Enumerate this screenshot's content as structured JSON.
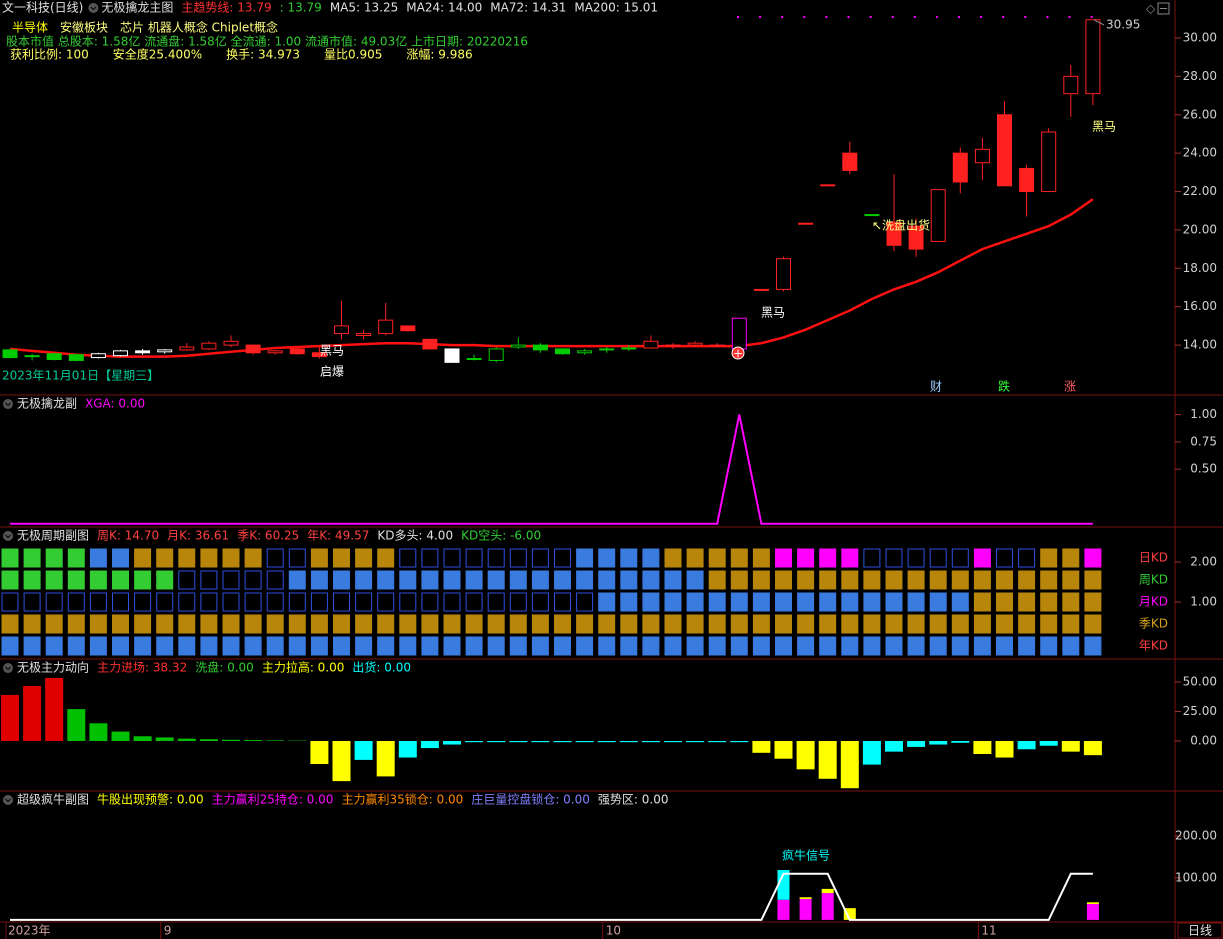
{
  "header": {
    "stock": "文一科技(日线)",
    "industry": "半导体",
    "region": "安徽板块",
    "concepts": "芯片 机器人概念 Chiplet概念",
    "capital_line": "股本市值 总股本: 1.58亿 流通盘: 1.58亿 全流通: 1.00 流通市值: 49.03亿 上市日期: 20220216",
    "stats": [
      "获利比例: 100",
      "安全度25.400%",
      "换手: 34.973",
      "量比0.905",
      "涨幅: 9.986"
    ]
  },
  "chart_data": [
    {
      "type": "candlestick",
      "title": "无极擒龙主图",
      "indicators": [
        "主趋势线: 13.79",
        ": 13.79",
        "MA5: 13.25",
        "MA24: 14.00",
        "MA72: 14.31",
        "MA200: 15.01"
      ],
      "indicator_colors": [
        "#ff3030",
        "#33cc33",
        "#e0e0e0",
        "#e0e0e0",
        "#e0e0e0",
        "#e0e0e0"
      ],
      "open": [
        13.75,
        13.45,
        13.55,
        13.5,
        13.35,
        13.45,
        13.7,
        13.65,
        13.75,
        13.8,
        14.0,
        14.0,
        13.6,
        13.8,
        13.6,
        14.6,
        14.5,
        14.6,
        15.0,
        14.3,
        13.8,
        13.3,
        13.2,
        13.9,
        14.0,
        13.8,
        13.6,
        13.75,
        13.8,
        13.85,
        14.0,
        14.0,
        14.0,
        13.8,
        16.9,
        16.9,
        20.35,
        22.35,
        24.0,
        20.8,
        20.4,
        20.2,
        19.4,
        24.0,
        23.5,
        26.0,
        23.2,
        22.0,
        27.1,
        27.1
      ],
      "high": [
        13.8,
        13.55,
        13.6,
        13.55,
        13.6,
        13.75,
        13.8,
        13.8,
        14.1,
        14.2,
        14.5,
        14.0,
        13.75,
        13.85,
        13.9,
        16.3,
        14.8,
        16.2,
        15.0,
        14.3,
        13.8,
        13.5,
        13.9,
        14.4,
        14.1,
        13.8,
        13.8,
        13.9,
        14.0,
        14.5,
        14.1,
        14.2,
        14.1,
        15.4,
        16.9,
        18.6,
        20.35,
        22.35,
        24.6,
        20.8,
        22.9,
        20.6,
        22.1,
        24.3,
        24.8,
        26.7,
        23.4,
        25.3,
        28.6,
        30.95
      ],
      "low": [
        13.3,
        13.2,
        13.2,
        13.15,
        13.3,
        13.4,
        13.5,
        13.55,
        13.7,
        13.75,
        13.9,
        13.5,
        13.5,
        13.5,
        13.3,
        14.3,
        14.3,
        14.5,
        14.7,
        13.8,
        13.1,
        13.2,
        13.1,
        13.8,
        13.6,
        13.5,
        13.5,
        13.6,
        13.7,
        13.8,
        13.8,
        13.9,
        13.9,
        13.8,
        16.9,
        16.8,
        20.35,
        22.35,
        22.9,
        20.8,
        18.9,
        18.6,
        19.4,
        21.9,
        22.6,
        22.3,
        20.7,
        22.0,
        25.9,
        26.5
      ],
      "close": [
        13.35,
        13.4,
        13.25,
        13.2,
        13.55,
        13.7,
        13.6,
        13.75,
        13.9,
        14.1,
        14.2,
        13.6,
        13.7,
        13.55,
        13.4,
        15.0,
        14.6,
        15.3,
        14.75,
        13.8,
        13.1,
        13.3,
        13.8,
        14.0,
        13.75,
        13.55,
        13.7,
        13.8,
        13.85,
        14.2,
        13.95,
        14.1,
        14.0,
        15.4,
        16.9,
        18.5,
        20.35,
        22.35,
        23.1,
        20.8,
        19.2,
        19.0,
        22.1,
        22.5,
        24.2,
        22.3,
        22.0,
        25.1,
        28.0,
        30.95
      ],
      "colors": [
        "#00cc00",
        "#00cc00",
        "#00cc00",
        "#00cc00",
        "#ffffff",
        "#ffffff",
        "#ffffff",
        "#ffffff",
        "#ff2020",
        "#ff2020",
        "#ff2020",
        "#ff2020",
        "#ff2020",
        "#ff2020",
        "#ff2020",
        "#ff2020",
        "#ff2020",
        "#ff2020",
        "#ff2020",
        "#ff2020",
        "#ffffff",
        "#00cc00",
        "#00cc00",
        "#00cc00",
        "#00cc00",
        "#00cc00",
        "#00cc00",
        "#00cc00",
        "#00cc00",
        "#ff2020",
        "#ff2020",
        "#ff2020",
        "#ff2020",
        "#ff00ff",
        "#ff2020",
        "#ff2020",
        "#ff2020",
        "#ff2020",
        "#ff2020",
        "#00cc00",
        "#ff2020",
        "#ff2020",
        "#ff2020",
        "#ff2020",
        "#ff2020",
        "#ff2020",
        "#ff2020",
        "#ff2020",
        "#ff2020",
        "#ff2020"
      ],
      "line": {
        "color": "#ff1010",
        "values": [
          13.8,
          13.7,
          13.6,
          13.5,
          13.45,
          13.4,
          13.4,
          13.4,
          13.45,
          13.55,
          13.65,
          13.75,
          13.85,
          13.9,
          13.95,
          14.0,
          14.05,
          14.1,
          14.1,
          14.05,
          14.0,
          14.0,
          13.95,
          13.95,
          13.95,
          13.95,
          13.95,
          13.95,
          13.95,
          13.95,
          13.95,
          13.95,
          13.95,
          13.95,
          14.1,
          14.4,
          14.8,
          15.3,
          15.8,
          16.4,
          16.9,
          17.3,
          17.8,
          18.4,
          19.0,
          19.4,
          19.8,
          20.2,
          20.8,
          21.6
        ]
      },
      "annotations": [
        "黑马",
        "启爆",
        "黑马",
        "↖洗盘出货",
        "黑马"
      ],
      "high_label": "30.95",
      "date_label": "2023年11月01日【星期三】",
      "markers": [
        "财",
        "跌",
        "涨"
      ],
      "ylim": [
        11.4,
        31.25
      ],
      "yticks": [
        {
          "value": 30,
          "label": "30.00"
        },
        {
          "value": 28,
          "label": "28.00"
        },
        {
          "value": 26,
          "label": "26.00"
        },
        {
          "value": 24,
          "label": "24.00"
        },
        {
          "value": 22,
          "label": "22.00"
        },
        {
          "value": 20,
          "label": "20.00"
        },
        {
          "value": 18,
          "label": "18.00"
        },
        {
          "value": 16,
          "label": "16.00"
        },
        {
          "value": 14,
          "label": "14.00"
        }
      ]
    },
    {
      "type": "line",
      "title": "无极擒龙副",
      "indicators": [
        "XGA: 0.00"
      ],
      "indicator_colors": [
        "#ff00ff"
      ],
      "color": "#ff00ff",
      "values": [
        0,
        0,
        0,
        0,
        0,
        0,
        0,
        0,
        0,
        0,
        0,
        0,
        0,
        0,
        0,
        0,
        0,
        0,
        0,
        0,
        0,
        0,
        0,
        0,
        0,
        0,
        0,
        0,
        0,
        0,
        0,
        0,
        0,
        1,
        0,
        0,
        0,
        0,
        0,
        0,
        0,
        0,
        0,
        0,
        0,
        0,
        0,
        0,
        0,
        0
      ],
      "ylim": [
        -0.02,
        1.17
      ],
      "yticks": [
        {
          "value": 1,
          "label": "1.00"
        },
        {
          "value": 0.75,
          "label": "0.75"
        },
        {
          "value": 0.5,
          "label": "0.50"
        }
      ]
    },
    {
      "type": "cells",
      "title": "无极周期副图",
      "indicators": [
        "周K: 14.70",
        "月K: 36.61",
        "季K: 60.25",
        "年K: 49.57",
        "KD多头: 4.00",
        "KD空头: -6.00"
      ],
      "indicator_colors": [
        "#ff4040",
        "#ff4040",
        "#ff4040",
        "#ff4040",
        "#e0e0e0",
        "#33cc33"
      ],
      "row_labels": [
        "日KD",
        "周KD",
        "月KD",
        "季KD",
        "年KD"
      ],
      "row_label_colors": [
        "#ff4040",
        "#33cc33",
        "#ff00ff",
        "#d4a017",
        "#ff4040"
      ],
      "palette": {
        "G": "#33cc33",
        "B": "#3a7be0",
        "O": "#b8860b",
        "M": "#ff00ff",
        "E": "#3050e0"
      },
      "outline_codes": [
        "E"
      ],
      "rows": [
        [
          "G",
          "G",
          "G",
          "G",
          "B",
          "B",
          "O",
          "O",
          "O",
          "O",
          "O",
          "O",
          "E",
          "E",
          "O",
          "O",
          "O",
          "O",
          "E",
          "E",
          "E",
          "E",
          "E",
          "E",
          "E",
          "E",
          "B",
          "B",
          "B",
          "B",
          "O",
          "O",
          "O",
          "O",
          "O",
          "M",
          "M",
          "M",
          "M",
          "E",
          "E",
          "E",
          "E",
          "E",
          "M",
          "E",
          "E",
          "O",
          "O",
          "M"
        ],
        [
          "G",
          "G",
          "G",
          "G",
          "G",
          "G",
          "G",
          "G",
          "E",
          "E",
          "E",
          "E",
          "E",
          "B",
          "B",
          "B",
          "B",
          "B",
          "B",
          "B",
          "B",
          "B",
          "B",
          "B",
          "B",
          "B",
          "B",
          "B",
          "B",
          "B",
          "B",
          "B",
          "O",
          "O",
          "O",
          "O",
          "O",
          "O",
          "O",
          "O",
          "O",
          "O",
          "O",
          "O",
          "O",
          "O",
          "O",
          "O",
          "O",
          "O"
        ],
        [
          "E",
          "E",
          "E",
          "E",
          "E",
          "E",
          "E",
          "E",
          "E",
          "E",
          "E",
          "E",
          "E",
          "E",
          "E",
          "E",
          "E",
          "E",
          "E",
          "E",
          "E",
          "E",
          "E",
          "E",
          "E",
          "E",
          "E",
          "B",
          "B",
          "B",
          "B",
          "B",
          "B",
          "B",
          "B",
          "B",
          "B",
          "B",
          "B",
          "B",
          "B",
          "B",
          "B",
          "B",
          "O",
          "O",
          "O",
          "O",
          "O",
          "O"
        ],
        [
          "O",
          "O",
          "O",
          "O",
          "O",
          "O",
          "O",
          "O",
          "O",
          "O",
          "O",
          "O",
          "O",
          "O",
          "O",
          "O",
          "O",
          "O",
          "O",
          "O",
          "O",
          "O",
          "O",
          "O",
          "O",
          "O",
          "O",
          "O",
          "O",
          "O",
          "O",
          "O",
          "O",
          "O",
          "O",
          "O",
          "O",
          "O",
          "O",
          "O",
          "O",
          "O",
          "O",
          "O",
          "O",
          "O",
          "O",
          "O",
          "O",
          "O"
        ],
        [
          "B",
          "B",
          "B",
          "B",
          "B",
          "B",
          "B",
          "B",
          "B",
          "B",
          "B",
          "B",
          "B",
          "B",
          "B",
          "B",
          "B",
          "B",
          "B",
          "B",
          "B",
          "B",
          "B",
          "B",
          "B",
          "B",
          "B",
          "B",
          "B",
          "B",
          "B",
          "B",
          "B",
          "B",
          "B",
          "B",
          "B",
          "B",
          "B",
          "B",
          "B",
          "B",
          "B",
          "B",
          "B",
          "B",
          "B",
          "B",
          "B",
          "B"
        ]
      ],
      "ylim": [
        -0.4,
        2.85
      ],
      "yticks": [
        {
          "value": 2,
          "label": "2.00"
        },
        {
          "value": 1,
          "label": "1.00"
        }
      ]
    },
    {
      "type": "bar",
      "title": "无极主力动向",
      "indicators": [
        "主力进场: 38.32",
        "洗盘: 0.00",
        "主力拉高: 0.00",
        "出货: 0.00"
      ],
      "indicator_colors": [
        "#ff3030",
        "#33cc33",
        "#ffff00",
        "#00ffff"
      ],
      "values": [
        39,
        46.6,
        53.4,
        27,
        15,
        8,
        4,
        3,
        2,
        1.5,
        1,
        0.8,
        0.5,
        0.3,
        -19.5,
        -34,
        -16,
        -30,
        -14,
        -6,
        -3,
        -1,
        -1,
        -1,
        -1,
        -1,
        -1,
        -1,
        -1,
        -1,
        -1,
        -1,
        -1,
        -1,
        -10,
        -15,
        -24,
        -32,
        -40,
        -20,
        -9,
        -5,
        -3,
        -1.5,
        -11,
        -14,
        -7,
        -4,
        -9,
        -12
      ],
      "colors": [
        "#e00000",
        "#e00000",
        "#e00000",
        "#00c000",
        "#00c000",
        "#00c000",
        "#00c000",
        "#00c000",
        "#00c000",
        "#00c000",
        "#00c000",
        "#00c000",
        "#00c000",
        "#00c000",
        "#ffff00",
        "#ffff00",
        "#00ffff",
        "#ffff00",
        "#00ffff",
        "#00ffff",
        "#00ffff",
        "#00ffff",
        "#00ffff",
        "#00ffff",
        "#00ffff",
        "#00ffff",
        "#00ffff",
        "#00ffff",
        "#00ffff",
        "#00ffff",
        "#00ffff",
        "#00ffff",
        "#00ffff",
        "#00ffff",
        "#ffff00",
        "#ffff00",
        "#ffff00",
        "#ffff00",
        "#ffff00",
        "#00ffff",
        "#00ffff",
        "#00ffff",
        "#00ffff",
        "#00ffff",
        "#ffff00",
        "#ffff00",
        "#00ffff",
        "#00ffff",
        "#ffff00",
        "#ffff00"
      ],
      "ylim": [
        -41.5,
        68.6
      ],
      "yticks": [
        {
          "value": 50,
          "label": "50.00"
        },
        {
          "value": 25,
          "label": "25.00"
        },
        {
          "value": 0,
          "label": "0.00"
        }
      ]
    },
    {
      "type": "stacked_bar",
      "title": "超级疯牛副图",
      "indicators": [
        "牛股出现预警: 0.00",
        "主力赢利25持仓: 0.00",
        "主力赢利35锁仓: 0.00",
        "庄巨量控盘锁仓: 0.00",
        "强势区: 0.00"
      ],
      "indicator_colors": [
        "#ffff00",
        "#ff00ff",
        "#ff8800",
        "#8080ff",
        "#e0e0e0"
      ],
      "annotation": "疯牛信号",
      "series": [
        {
          "color": "#ff00ff",
          "values": [
            0,
            0,
            0,
            0,
            0,
            0,
            0,
            0,
            0,
            0,
            0,
            0,
            0,
            0,
            0,
            0,
            0,
            0,
            0,
            0,
            0,
            0,
            0,
            0,
            0,
            0,
            0,
            0,
            0,
            0,
            0,
            0,
            0,
            0,
            0,
            48,
            50,
            64,
            0,
            0,
            0,
            0,
            0,
            0,
            0,
            0,
            0,
            0,
            0,
            38
          ]
        },
        {
          "color": "#00ffff",
          "values": [
            0,
            0,
            0,
            0,
            0,
            0,
            0,
            0,
            0,
            0,
            0,
            0,
            0,
            0,
            0,
            0,
            0,
            0,
            0,
            0,
            0,
            0,
            0,
            0,
            0,
            0,
            0,
            0,
            0,
            0,
            0,
            0,
            0,
            0,
            0,
            71,
            0,
            0,
            0,
            0,
            0,
            0,
            0,
            0,
            0,
            0,
            0,
            0,
            0,
            0
          ]
        },
        {
          "color": "#ffff00",
          "values": [
            0,
            0,
            0,
            0,
            0,
            0,
            0,
            0,
            0,
            0,
            0,
            0,
            0,
            0,
            0,
            0,
            0,
            0,
            0,
            0,
            0,
            0,
            0,
            0,
            0,
            0,
            0,
            0,
            0,
            0,
            0,
            0,
            0,
            0,
            0,
            0,
            4,
            10,
            28,
            0,
            0,
            0,
            0,
            0,
            0,
            0,
            0,
            0,
            0,
            4
          ]
        }
      ],
      "line": {
        "color": "#ffffff",
        "values": [
          0,
          0,
          0,
          0,
          0,
          0,
          0,
          0,
          0,
          0,
          0,
          0,
          0,
          0,
          0,
          0,
          0,
          0,
          0,
          0,
          0,
          0,
          0,
          0,
          0,
          0,
          0,
          0,
          0,
          0,
          0,
          0,
          0,
          0,
          0,
          110,
          110,
          110,
          0,
          0,
          0,
          0,
          0,
          0,
          0,
          0,
          0,
          0,
          110,
          110
        ]
      },
      "categories": [
        "2023年",
        null,
        null,
        null,
        null,
        null,
        null,
        "9",
        null,
        null,
        null,
        null,
        null,
        null,
        null,
        null,
        null,
        null,
        null,
        null,
        null,
        null,
        null,
        null,
        null,
        null,
        null,
        "10",
        null,
        null,
        null,
        null,
        null,
        null,
        null,
        null,
        null,
        null,
        null,
        null,
        null,
        null,
        null,
        null,
        "11",
        null,
        null,
        null,
        null,
        null
      ],
      "period_label": "日线",
      "ylim": [
        -5,
        305
      ],
      "yticks": [
        {
          "value": 200,
          "label": "200.00"
        },
        {
          "value": 100,
          "label": "100.00"
        }
      ]
    }
  ]
}
